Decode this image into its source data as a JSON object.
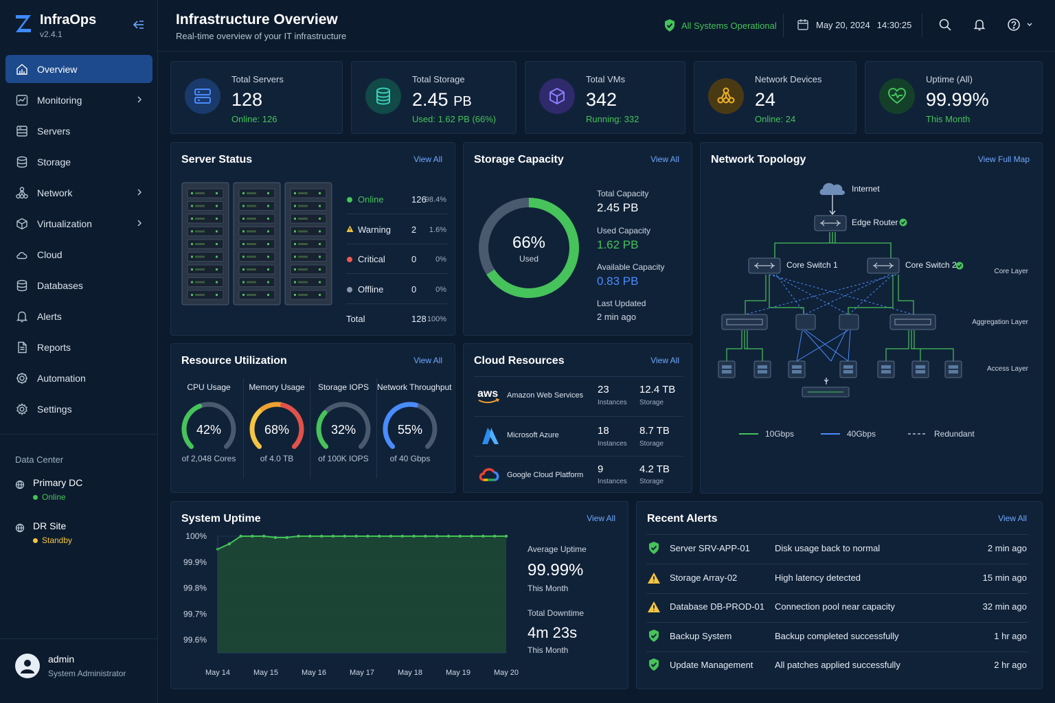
{
  "app": {
    "name": "InfraOps",
    "version": "v2.4.1"
  },
  "nav": [
    {
      "label": "Overview",
      "active": true
    },
    {
      "label": "Monitoring",
      "chevron": true
    },
    {
      "label": "Servers"
    },
    {
      "label": "Storage"
    },
    {
      "label": "Network",
      "chevron": true
    },
    {
      "label": "Virtualization",
      "chevron": true
    },
    {
      "label": "Cloud"
    },
    {
      "label": "Databases"
    },
    {
      "label": "Alerts"
    },
    {
      "label": "Reports"
    },
    {
      "label": "Automation"
    },
    {
      "label": "Settings"
    }
  ],
  "datacenter": {
    "title": "Data Center",
    "sites": [
      {
        "name": "Primary DC",
        "status": "Online",
        "color": "#46c35a"
      },
      {
        "name": "DR Site",
        "status": "Standby",
        "color": "#f5c542"
      }
    ]
  },
  "user": {
    "name": "admin",
    "role": "System Administrator"
  },
  "header": {
    "title": "Infrastructure Overview",
    "subtitle": "Real-time overview of your IT infrastructure",
    "status": "All Systems Operational",
    "date": "May 20, 2024",
    "time": "14:30:25"
  },
  "kpis": [
    {
      "label": "Total Servers",
      "value": "128",
      "unit": "",
      "sub": "Online: 126",
      "icon": "server-icon",
      "color": "#4a8cff"
    },
    {
      "label": "Total Storage",
      "value": "2.45",
      "unit": "PB",
      "sub": "Used: 1.62 PB (66%)",
      "icon": "database-icon",
      "color": "#3ad1b8"
    },
    {
      "label": "Total VMs",
      "value": "342",
      "unit": "",
      "sub": "Running: 332",
      "icon": "cube-icon",
      "color": "#8f7cff"
    },
    {
      "label": "Network Devices",
      "value": "24",
      "unit": "",
      "sub": "Online: 24",
      "icon": "network-icon",
      "color": "#f0b429"
    },
    {
      "label": "Uptime (All)",
      "value": "99.99%",
      "unit": "",
      "sub": "This Month",
      "icon": "heart-pulse-icon",
      "color": "#46c35a"
    }
  ],
  "server_status": {
    "title": "Server Status",
    "view_all": "View All",
    "rows": [
      {
        "label": "Online",
        "count": "126",
        "pct": "98.4%",
        "color": "#46c35a"
      },
      {
        "label": "Warning",
        "count": "2",
        "pct": "1.6%",
        "color": "#f5c542"
      },
      {
        "label": "Critical",
        "count": "0",
        "pct": "0%",
        "color": "#f0574e"
      },
      {
        "label": "Offline",
        "count": "0",
        "pct": "0%",
        "color": "#8a97a8"
      },
      {
        "label": "Total",
        "count": "128",
        "pct": "100%",
        "color": ""
      }
    ]
  },
  "storage": {
    "title": "Storage Capacity",
    "view_all": "View All",
    "used_pct": 66,
    "center_value": "66%",
    "center_label": "Used",
    "total_label": "Total Capacity",
    "total": "2.45 PB",
    "used_label": "Used Capacity",
    "used": "1.62 PB",
    "avail_label": "Available Capacity",
    "avail": "0.83 PB",
    "updated_label": "Last Updated",
    "updated": "2 min ago"
  },
  "topology": {
    "title": "Network Topology",
    "view_all": "View Full Map",
    "internet": "Internet",
    "edge": "Edge Router",
    "core1": "Core Switch 1",
    "core2": "Core Switch 2",
    "layers": [
      "Core Layer",
      "Aggregation Layer",
      "Access Layer"
    ],
    "legend": [
      "10Gbps",
      "40Gbps",
      "Redundant"
    ]
  },
  "resources": {
    "title": "Resource Utilization",
    "view_all": "View All",
    "gauges": [
      {
        "title": "CPU Usage",
        "value": 42,
        "label": "42%",
        "sub": "of 2,048 Cores",
        "color": "#46c35a"
      },
      {
        "title": "Memory Usage",
        "value": 68,
        "label": "68%",
        "sub": "of 4.0 TB",
        "color": "#f0b429"
      },
      {
        "title": "Storage IOPS",
        "value": 32,
        "label": "32%",
        "sub": "of 100K IOPS",
        "color": "#46c35a"
      },
      {
        "title": "Network Throughput",
        "value": 55,
        "label": "55%",
        "sub": "of 40 Gbps",
        "color": "#4a8cff"
      }
    ]
  },
  "cloud": {
    "title": "Cloud Resources",
    "view_all": "View All",
    "providers": [
      {
        "name": "Amazon Web Services",
        "instances": "23",
        "inst_label": "Instances",
        "storage": "12.4 TB",
        "stor_label": "Storage",
        "icon": "aws-logo-icon"
      },
      {
        "name": "Microsoft Azure",
        "instances": "18",
        "inst_label": "Instances",
        "storage": "8.7 TB",
        "stor_label": "Storage",
        "icon": "azure-logo-icon"
      },
      {
        "name": "Google Cloud Platform",
        "instances": "9",
        "inst_label": "Instances",
        "storage": "4.2 TB",
        "stor_label": "Storage",
        "icon": "gcp-logo-icon"
      }
    ]
  },
  "uptime": {
    "title": "System Uptime",
    "view_all": "View All",
    "avg_label": "Average Uptime",
    "avg": "99.99%",
    "avg_period": "This Month",
    "down_label": "Total Downtime",
    "down": "4m 23s",
    "down_period": "This Month"
  },
  "chart_data": {
    "type": "area",
    "title": "System Uptime",
    "y_ticks": [
      "100%",
      "99.9%",
      "99.8%",
      "99.7%",
      "99.6%"
    ],
    "ylim": [
      99.55,
      100
    ],
    "x_ticks": [
      "May 14",
      "May 15",
      "May 16",
      "May 17",
      "May 18",
      "May 19",
      "May 20"
    ],
    "series": [
      {
        "values": [
          99.95,
          99.97,
          100,
          100,
          100,
          99.995,
          99.995,
          100,
          100,
          100,
          100,
          100,
          100,
          100,
          100,
          100,
          100,
          100,
          100,
          100,
          100,
          100,
          100,
          100,
          100,
          100
        ]
      }
    ],
    "color": "#46c35a"
  },
  "alerts": {
    "title": "Recent Alerts",
    "view_all": "View All",
    "items": [
      {
        "severity": "ok",
        "source": "Server SRV-APP-01",
        "message": "Disk usage back to normal",
        "time": "2 min ago"
      },
      {
        "severity": "warning",
        "source": "Storage Array-02",
        "message": "High latency detected",
        "time": "15 min ago"
      },
      {
        "severity": "warning",
        "source": "Database DB-PROD-01",
        "message": "Connection pool near capacity",
        "time": "32 min ago"
      },
      {
        "severity": "ok",
        "source": "Backup System",
        "message": "Backup completed successfully",
        "time": "1 hr ago"
      },
      {
        "severity": "ok",
        "source": "Update Management",
        "message": "All patches applied successfully",
        "time": "2 hr ago"
      }
    ]
  }
}
